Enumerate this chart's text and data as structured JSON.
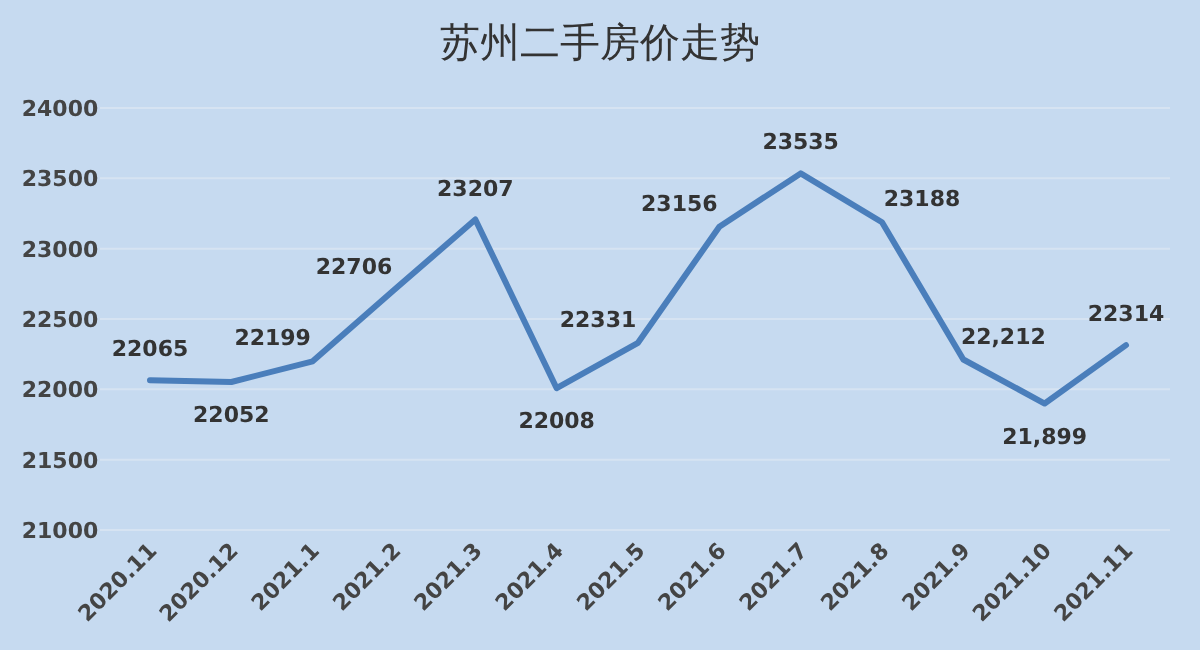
{
  "chart_data": {
    "type": "line",
    "title": "苏州二手房价走势",
    "categories": [
      "2020.11",
      "2020.12",
      "2021.1",
      "2021.2",
      "2021.3",
      "2021.4",
      "2021.5",
      "2021.6",
      "2021.7",
      "2021.8",
      "2021.9",
      "2021.10",
      "2021.11"
    ],
    "series": [
      {
        "color": "#4a7ebb",
        "values": [
          22065,
          22052,
          22199,
          22706,
          23207,
          22008,
          22331,
          23156,
          23535,
          23188,
          22212,
          21899,
          22314
        ],
        "value_labels": [
          "22065",
          "22052",
          "22199",
          "22706",
          "23207",
          "22008",
          "22331",
          "23156",
          "23535",
          "23188",
          "22,212",
          "21,899",
          "22314"
        ]
      }
    ],
    "ylim": [
      21000,
      24000
    ],
    "yticks": [
      21000,
      21500,
      22000,
      22500,
      23000,
      23500,
      24000
    ],
    "grid": "y",
    "marker": "none",
    "line_style": "solid"
  }
}
